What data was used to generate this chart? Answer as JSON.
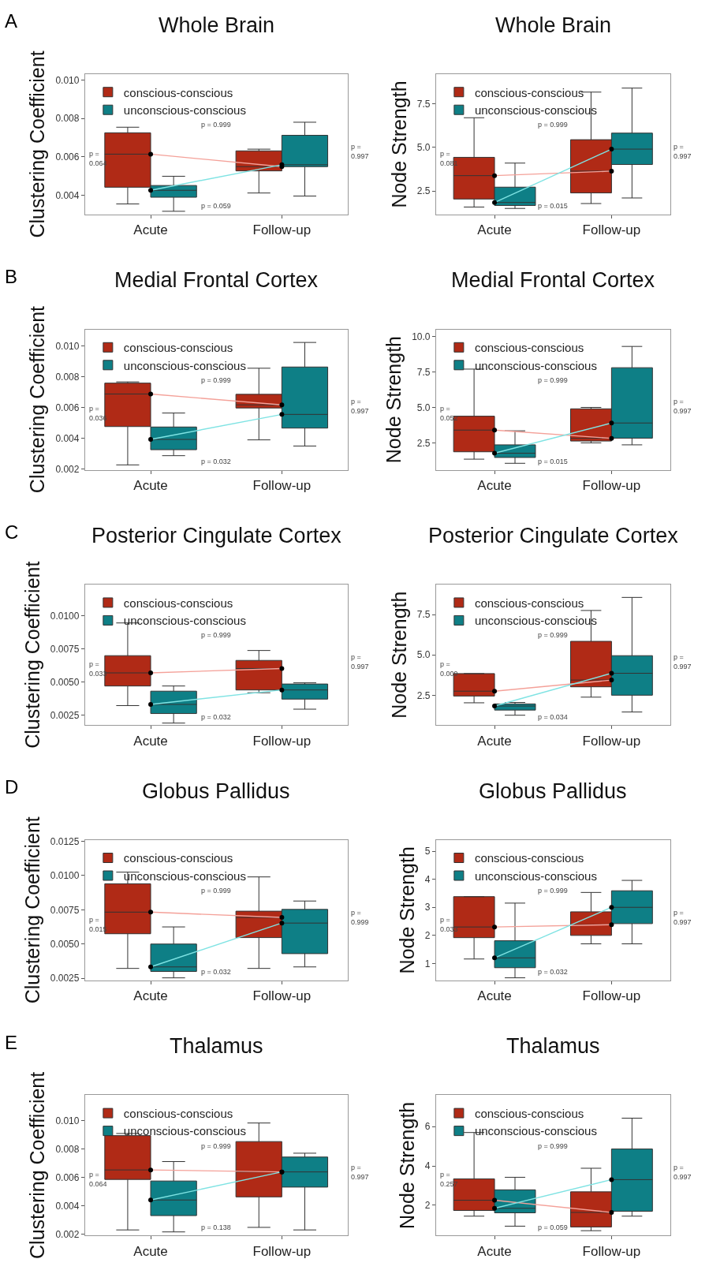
{
  "chart_data": [
    {
      "type": "box",
      "title": "Whole Brain",
      "ylabel": "Clustering Coefficient",
      "categories": [
        "Acute",
        "Follow-up"
      ],
      "ylim": [
        0.003,
        0.0103
      ],
      "yticks": [
        {
          "value": 0.004,
          "label": "0.004"
        },
        {
          "value": 0.006,
          "label": "0.006"
        },
        {
          "value": 0.008,
          "label": "0.008"
        },
        {
          "value": 0.01,
          "label": "0.010"
        }
      ],
      "grid": false,
      "legend": "top left",
      "series": [
        {
          "name": "conscious-conscious",
          "color": "#b02a16",
          "boxes": [
            {
              "low": 0.00355,
              "q1": 0.00442,
              "median": 0.00614,
              "q3": 0.00725,
              "high": 0.00754
            },
            {
              "low": 0.00412,
              "q1": 0.00527,
              "median": 0.00549,
              "q3": 0.00631,
              "high": 0.0064
            }
          ]
        },
        {
          "name": "unconscious-conscious",
          "color": "#0e7f86",
          "boxes": [
            {
              "low": 0.00317,
              "q1": 0.0039,
              "median": 0.00426,
              "q3": 0.00451,
              "high": 0.00499
            },
            {
              "low": 0.00396,
              "q1": 0.00549,
              "median": 0.00559,
              "q3": 0.00712,
              "high": 0.0078
            }
          ]
        },
        {
          "type": "line",
          "color": "#f4a199",
          "marker": "circle",
          "values": [
            0.00614,
            0.00549
          ]
        },
        {
          "type": "line",
          "color": "#7fe3e3",
          "marker": "circle",
          "values": [
            0.00426,
            0.00559
          ]
        }
      ],
      "annotations": [
        "p =\n0.064",
        "p = 0.999",
        "p =\n0.997",
        "p = 0.059",
        "A"
      ]
    },
    {
      "type": "box",
      "title": "Whole Brain",
      "ylabel": "Node Strength",
      "categories": [
        "Acute",
        "Follow-up"
      ],
      "ylim": [
        1.15,
        9.2
      ],
      "yticks": [
        {
          "value": 2.5,
          "label": "2.5"
        },
        {
          "value": 5.0,
          "label": "5.0"
        },
        {
          "value": 7.5,
          "label": "7.5"
        }
      ],
      "grid": false,
      "legend": "top left",
      "series": [
        {
          "name": "conscious-conscious",
          "color": "#b02a16",
          "boxes": [
            {
              "low": 1.58,
              "q1": 2.04,
              "median": 3.38,
              "q3": 4.43,
              "high": 6.7
            },
            {
              "low": 1.78,
              "q1": 2.39,
              "median": 3.64,
              "q3": 5.44,
              "high": 8.17
            }
          ]
        },
        {
          "name": "unconscious-conscious",
          "color": "#0e7f86",
          "boxes": [
            {
              "low": 1.5,
              "q1": 1.67,
              "median": 1.84,
              "q3": 2.72,
              "high": 4.1
            },
            {
              "low": 2.1,
              "q1": 4.02,
              "median": 4.9,
              "q3": 5.82,
              "high": 8.4
            }
          ]
        },
        {
          "type": "line",
          "color": "#f4a199",
          "marker": "circle",
          "values": [
            3.38,
            3.64
          ]
        },
        {
          "type": "line",
          "color": "#7fe3e3",
          "marker": "circle",
          "values": [
            1.84,
            4.9
          ]
        }
      ],
      "annotations": [
        "p =\n0.081",
        "p = 0.999",
        "p =\n0.997",
        "p = 0.015"
      ]
    },
    {
      "type": "box",
      "title": "Medial Frontal Cortex",
      "ylabel": "Clustering Coefficient",
      "categories": [
        "Acute",
        "Follow-up"
      ],
      "ylim": [
        0.00195,
        0.0111
      ],
      "yticks": [
        {
          "value": 0.002,
          "label": "0.002"
        },
        {
          "value": 0.004,
          "label": "0.004"
        },
        {
          "value": 0.006,
          "label": "0.006"
        },
        {
          "value": 0.008,
          "label": "0.008"
        },
        {
          "value": 0.01,
          "label": "0.010"
        }
      ],
      "grid": false,
      "legend": "top left",
      "series": [
        {
          "name": "conscious-conscious",
          "color": "#b02a16",
          "boxes": [
            {
              "low": 0.00227,
              "q1": 0.00477,
              "median": 0.00689,
              "q3": 0.0076,
              "high": 0.00768
            },
            {
              "low": 0.0039,
              "q1": 0.00598,
              "median": 0.00618,
              "q3": 0.00687,
              "high": 0.00857
            }
          ]
        },
        {
          "name": "unconscious-conscious",
          "color": "#0e7f86",
          "boxes": [
            {
              "low": 0.00287,
              "q1": 0.00326,
              "median": 0.00393,
              "q3": 0.00474,
              "high": 0.00565
            },
            {
              "low": 0.0035,
              "q1": 0.00467,
              "median": 0.00556,
              "q3": 0.00865,
              "high": 0.01025
            }
          ]
        },
        {
          "type": "line",
          "color": "#f4a199",
          "marker": "circle",
          "values": [
            0.00689,
            0.00618
          ]
        },
        {
          "type": "line",
          "color": "#7fe3e3",
          "marker": "circle",
          "values": [
            0.00393,
            0.00556
          ]
        }
      ],
      "annotations": [
        "p =\n0.036",
        "p = 0.999",
        "p =\n0.997",
        "p = 0.032",
        "B"
      ]
    },
    {
      "type": "box",
      "title": "Medial Frontal Cortex",
      "ylabel": "Node Strength",
      "categories": [
        "Acute",
        "Follow-up"
      ],
      "ylim": [
        0.6,
        10.5
      ],
      "yticks": [
        {
          "value": 2.5,
          "label": "2.5"
        },
        {
          "value": 5.0,
          "label": "5.0"
        },
        {
          "value": 7.5,
          "label": "7.5"
        },
        {
          "value": 10.0,
          "label": "10.0"
        }
      ],
      "grid": false,
      "legend": "top left",
      "series": [
        {
          "name": "conscious-conscious",
          "color": "#b02a16",
          "boxes": [
            {
              "low": 1.35,
              "q1": 1.87,
              "median": 3.4,
              "q3": 4.38,
              "high": 7.7
            },
            {
              "low": 2.5,
              "q1": 2.63,
              "median": 2.82,
              "q3": 4.9,
              "high": 5.0
            }
          ]
        },
        {
          "name": "unconscious-conscious",
          "color": "#0e7f86",
          "boxes": [
            {
              "low": 1.06,
              "q1": 1.47,
              "median": 1.77,
              "q3": 2.36,
              "high": 3.35
            },
            {
              "low": 2.36,
              "q1": 2.83,
              "median": 3.9,
              "q3": 7.8,
              "high": 9.3
            }
          ]
        },
        {
          "type": "line",
          "color": "#f4a199",
          "marker": "circle",
          "values": [
            3.4,
            2.82
          ]
        },
        {
          "type": "line",
          "color": "#7fe3e3",
          "marker": "circle",
          "values": [
            1.77,
            3.9
          ]
        }
      ],
      "annotations": [
        "p =\n0.052",
        "p = 0.999",
        "p =\n0.997",
        "p = 0.015"
      ]
    },
    {
      "type": "box",
      "title": "Posterior Cingulate Cortex",
      "ylabel": "Clustering Coefficient",
      "categories": [
        "Acute",
        "Follow-up"
      ],
      "ylim": [
        0.00175,
        0.01235
      ],
      "yticks": [
        {
          "value": 0.0025,
          "label": "0.0025"
        },
        {
          "value": 0.005,
          "label": "0.0050"
        },
        {
          "value": 0.0075,
          "label": "0.0075"
        },
        {
          "value": 0.01,
          "label": "0.0100"
        }
      ],
      "grid": false,
      "legend": "top left",
      "series": [
        {
          "name": "conscious-conscious",
          "color": "#b02a16",
          "boxes": [
            {
              "low": 0.00322,
              "q1": 0.0047,
              "median": 0.00569,
              "q3": 0.00699,
              "high": 0.00946
            },
            {
              "low": 0.00419,
              "q1": 0.0044,
              "median": 0.00602,
              "q3": 0.00663,
              "high": 0.00738
            }
          ]
        },
        {
          "name": "unconscious-conscious",
          "color": "#0e7f86",
          "boxes": [
            {
              "low": 0.0019,
              "q1": 0.00262,
              "median": 0.00331,
              "q3": 0.00431,
              "high": 0.0047
            },
            {
              "low": 0.00295,
              "q1": 0.00371,
              "median": 0.0044,
              "q3": 0.00485,
              "high": 0.00494
            }
          ]
        },
        {
          "type": "line",
          "color": "#f4a199",
          "marker": "circle",
          "values": [
            0.00569,
            0.00602
          ]
        },
        {
          "type": "line",
          "color": "#7fe3e3",
          "marker": "circle",
          "values": [
            0.00331,
            0.0044
          ]
        }
      ],
      "annotations": [
        "p =\n0.033",
        "p = 0.999",
        "p =\n0.997",
        "p = 0.032",
        "C"
      ]
    },
    {
      "type": "box",
      "title": "Posterior Cingulate Cortex",
      "ylabel": "Node Strength",
      "categories": [
        "Acute",
        "Follow-up"
      ],
      "ylim": [
        0.65,
        9.35
      ],
      "yticks": [
        {
          "value": 2.5,
          "label": "2.5"
        },
        {
          "value": 5.0,
          "label": "5.0"
        },
        {
          "value": 7.5,
          "label": "7.5"
        }
      ],
      "grid": false,
      "legend": "top left",
      "series": [
        {
          "name": "conscious-conscious",
          "color": "#b02a16",
          "boxes": [
            {
              "low": 2.03,
              "q1": 2.45,
              "median": 2.75,
              "q3": 3.84,
              "high": 3.84
            },
            {
              "low": 2.38,
              "q1": 3.02,
              "median": 3.44,
              "q3": 5.84,
              "high": 7.75
            }
          ]
        },
        {
          "name": "unconscious-conscious",
          "color": "#0e7f86",
          "boxes": [
            {
              "low": 1.26,
              "q1": 1.58,
              "median": 1.83,
              "q3": 1.96,
              "high": 2.05
            },
            {
              "low": 1.46,
              "q1": 2.5,
              "median": 3.86,
              "q3": 4.95,
              "high": 8.56
            }
          ]
        },
        {
          "type": "line",
          "color": "#f4a199",
          "marker": "circle",
          "values": [
            2.75,
            3.44
          ]
        },
        {
          "type": "line",
          "color": "#7fe3e3",
          "marker": "circle",
          "values": [
            1.83,
            3.86
          ]
        }
      ],
      "annotations": [
        "p =\n0.009",
        "p = 0.999",
        "p =\n0.997",
        "p = 0.034"
      ]
    },
    {
      "type": "box",
      "title": "Globus Pallidus",
      "ylabel": "Clustering Coefficient",
      "categories": [
        "Acute",
        "Follow-up"
      ],
      "ylim": [
        0.00235,
        0.0126
      ],
      "yticks": [
        {
          "value": 0.0025,
          "label": "0.0025"
        },
        {
          "value": 0.005,
          "label": "0.0050"
        },
        {
          "value": 0.0075,
          "label": "0.0075"
        },
        {
          "value": 0.01,
          "label": "0.0100"
        },
        {
          "value": 0.0125,
          "label": "0.0125"
        }
      ],
      "grid": false,
      "legend": "top left",
      "series": [
        {
          "name": "conscious-conscious",
          "color": "#b02a16",
          "boxes": [
            {
              "low": 0.00322,
              "q1": 0.00575,
              "median": 0.00733,
              "q3": 0.0094,
              "high": 0.01025
            },
            {
              "low": 0.00322,
              "q1": 0.00547,
              "median": 0.00694,
              "q3": 0.0074,
              "high": 0.0099
            }
          ]
        },
        {
          "name": "unconscious-conscious",
          "color": "#0e7f86",
          "boxes": [
            {
              "low": 0.00253,
              "q1": 0.003,
              "median": 0.00333,
              "q3": 0.005,
              "high": 0.00625
            },
            {
              "low": 0.00333,
              "q1": 0.0043,
              "median": 0.00653,
              "q3": 0.00753,
              "high": 0.00814
            }
          ]
        },
        {
          "type": "line",
          "color": "#f4a199",
          "marker": "circle",
          "values": [
            0.00733,
            0.00694
          ]
        },
        {
          "type": "line",
          "color": "#7fe3e3",
          "marker": "circle",
          "values": [
            0.00333,
            0.00653
          ]
        }
      ],
      "annotations": [
        "p =\n0.015",
        "p = 0.999",
        "p =\n0.999",
        "p = 0.032",
        "D"
      ]
    },
    {
      "type": "box",
      "title": "Globus Pallidus",
      "ylabel": "Node Strength",
      "categories": [
        "Acute",
        "Follow-up"
      ],
      "ylim": [
        0.4,
        5.4
      ],
      "yticks": [
        1,
        2,
        3,
        4,
        5
      ],
      "grid": false,
      "legend": "top left",
      "series": [
        {
          "name": "conscious-conscious",
          "color": "#b02a16",
          "boxes": [
            {
              "low": 1.16,
              "q1": 1.92,
              "median": 2.3,
              "q3": 3.38,
              "high": 3.38
            },
            {
              "low": 1.7,
              "q1": 2.0,
              "median": 2.38,
              "q3": 2.84,
              "high": 3.53
            }
          ]
        },
        {
          "name": "unconscious-conscious",
          "color": "#0e7f86",
          "boxes": [
            {
              "low": 0.49,
              "q1": 0.85,
              "median": 1.2,
              "q3": 1.81,
              "high": 3.15
            },
            {
              "low": 1.7,
              "q1": 2.42,
              "median": 3.0,
              "q3": 3.59,
              "high": 3.96
            }
          ]
        },
        {
          "type": "line",
          "color": "#f4a199",
          "marker": "circle",
          "values": [
            2.3,
            2.38
          ]
        },
        {
          "type": "line",
          "color": "#7fe3e3",
          "marker": "circle",
          "values": [
            1.2,
            3.0
          ]
        }
      ],
      "annotations": [
        "p =\n0.033",
        "p = 0.999",
        "p =\n0.997",
        "p = 0.032"
      ]
    },
    {
      "type": "box",
      "title": "Thalamus",
      "ylabel": "Clustering Coefficient",
      "categories": [
        "Acute",
        "Follow-up"
      ],
      "ylim": [
        0.0019,
        0.0118
      ],
      "yticks": [
        {
          "value": 0.002,
          "label": "0.002"
        },
        {
          "value": 0.004,
          "label": "0.004"
        },
        {
          "value": 0.006,
          "label": "0.006"
        },
        {
          "value": 0.008,
          "label": "0.008"
        },
        {
          "value": 0.01,
          "label": "0.010"
        }
      ],
      "grid": false,
      "legend": "top left",
      "series": [
        {
          "name": "conscious-conscious",
          "color": "#b02a16",
          "boxes": [
            {
              "low": 0.0023,
              "q1": 0.00586,
              "median": 0.00653,
              "q3": 0.00895,
              "high": 0.0091
            },
            {
              "low": 0.00248,
              "q1": 0.00463,
              "median": 0.00639,
              "q3": 0.00853,
              "high": 0.00984
            }
          ]
        },
        {
          "name": "unconscious-conscious",
          "color": "#0e7f86",
          "boxes": [
            {
              "low": 0.00216,
              "q1": 0.00331,
              "median": 0.00441,
              "q3": 0.00575,
              "high": 0.00712
            },
            {
              "low": 0.0023,
              "q1": 0.00532,
              "median": 0.00639,
              "q3": 0.00744,
              "high": 0.00771
            }
          ]
        },
        {
          "type": "line",
          "color": "#f4a199",
          "marker": "circle",
          "values": [
            0.00653,
            0.00639
          ]
        },
        {
          "type": "line",
          "color": "#7fe3e3",
          "marker": "circle",
          "values": [
            0.00441,
            0.00639
          ]
        }
      ],
      "annotations": [
        "p =\n0.064",
        "p = 0.999",
        "p =\n0.997",
        "p = 0.138",
        "E"
      ]
    },
    {
      "type": "box",
      "title": "Thalamus",
      "ylabel": "Node Strength",
      "categories": [
        "Acute",
        "Follow-up"
      ],
      "ylim": [
        0.45,
        7.6
      ],
      "yticks": [
        2,
        4,
        6
      ],
      "grid": false,
      "legend": "top left",
      "series": [
        {
          "name": "conscious-conscious",
          "color": "#b02a16",
          "boxes": [
            {
              "low": 1.44,
              "q1": 1.73,
              "median": 2.25,
              "q3": 3.34,
              "high": 5.7
            },
            {
              "low": 0.7,
              "q1": 0.89,
              "median": 1.63,
              "q3": 2.68,
              "high": 3.88
            }
          ]
        },
        {
          "name": "unconscious-conscious",
          "color": "#0e7f86",
          "boxes": [
            {
              "low": 0.93,
              "q1": 1.61,
              "median": 1.84,
              "q3": 2.78,
              "high": 3.42
            },
            {
              "low": 1.44,
              "q1": 1.69,
              "median": 3.3,
              "q3": 4.86,
              "high": 6.43
            }
          ]
        },
        {
          "type": "line",
          "color": "#f4a199",
          "marker": "circle",
          "values": [
            2.25,
            1.63
          ]
        },
        {
          "type": "line",
          "color": "#7fe3e3",
          "marker": "circle",
          "values": [
            1.84,
            3.3
          ]
        }
      ],
      "annotations": [
        "p =\n0.257",
        "p = 0.999",
        "p =\n0.997",
        "p = 0.059"
      ]
    }
  ]
}
